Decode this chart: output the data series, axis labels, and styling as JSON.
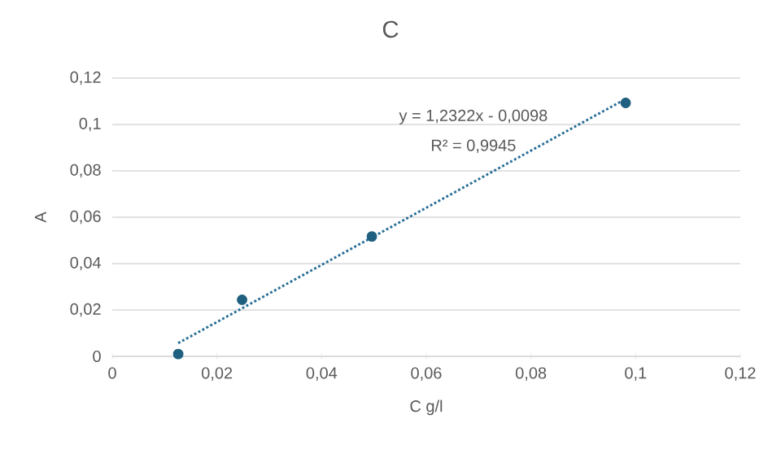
{
  "chart_data": {
    "type": "scatter",
    "title": "C",
    "xlabel": "C g/l",
    "ylabel": "A",
    "series": [
      {
        "color": "#1f5f7f",
        "marker": "circle",
        "x": [
          0.0126,
          0.0248,
          0.0496,
          0.0981
        ],
        "values": [
          0.001,
          0.0244,
          0.0517,
          0.1093
        ]
      },
      {
        "type": "line",
        "color": "#2a6f97",
        "marker": "none",
        "line_style": "dotted",
        "x": [
          0.0126,
          0.0981
        ],
        "values": [
          0.0057,
          0.111
        ]
      }
    ],
    "annotations": [
      "y = 1,2322x - 0,0098",
      "R² = 0,9945"
    ],
    "xlim": [
      0,
      0.12
    ],
    "ylim": [
      0,
      0.12
    ],
    "xticks": [
      0,
      {
        "value": 0.02,
        "label": "0,02"
      },
      {
        "value": 0.04,
        "label": "0,04"
      },
      {
        "value": 0.06,
        "label": "0,06"
      },
      {
        "value": 0.08,
        "label": "0,08"
      },
      {
        "value": 0.1,
        "label": "0,1"
      },
      {
        "value": 0.12,
        "label": "0,12"
      }
    ],
    "yticks": [
      0,
      {
        "value": 0.02,
        "label": "0,02"
      },
      {
        "value": 0.04,
        "label": "0,04"
      },
      {
        "value": 0.06,
        "label": "0,06"
      },
      {
        "value": 0.08,
        "label": "0,08"
      },
      {
        "value": 0.1,
        "label": "0,1"
      },
      {
        "value": 0.12,
        "label": "0,12"
      }
    ],
    "grid": "y"
  }
}
